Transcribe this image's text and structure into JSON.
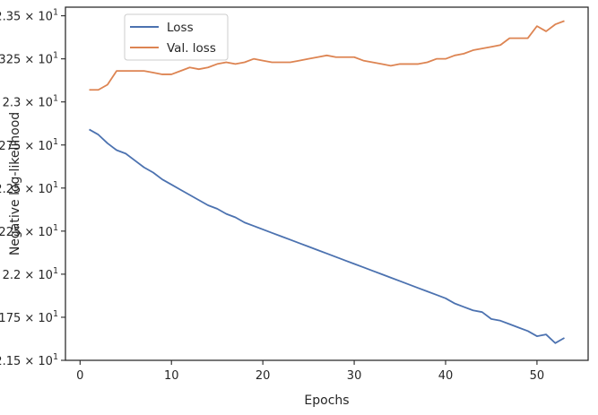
{
  "chart_data": {
    "type": "line",
    "title": "",
    "xlabel": "Epochs",
    "ylabel": "Negative log-likelihood",
    "xlim": [
      -1.6,
      55.6
    ],
    "ylim": [
      21.5,
      23.55
    ],
    "xticks": [
      0,
      10,
      20,
      30,
      40,
      50
    ],
    "xtick_labels": [
      "0",
      "10",
      "20",
      "30",
      "40",
      "50"
    ],
    "yticks": [
      21.5,
      21.75,
      22.0,
      22.25,
      22.5,
      22.75,
      23.0,
      23.25,
      23.5
    ],
    "ytick_mantissas": [
      "2.15",
      "2.175",
      "2.2",
      "2.225",
      "2.25",
      "2.275",
      "2.3",
      "2.325",
      "2.35"
    ],
    "ytick_times": "×",
    "ytick_base": "10",
    "ytick_exp": "1",
    "grid": false,
    "legend_position": "top-left",
    "series": [
      {
        "name": "Loss",
        "color": "#4c72b0",
        "x": [
          1,
          2,
          3,
          4,
          5,
          6,
          7,
          8,
          9,
          10,
          11,
          12,
          13,
          14,
          15,
          16,
          17,
          18,
          19,
          20,
          21,
          22,
          23,
          24,
          25,
          26,
          27,
          28,
          29,
          30,
          31,
          32,
          33,
          34,
          35,
          36,
          37,
          38,
          39,
          40,
          41,
          42,
          43,
          44,
          45,
          46,
          47,
          48,
          49,
          50,
          51,
          52,
          53
        ],
        "values": [
          22.84,
          22.81,
          22.76,
          22.72,
          22.7,
          22.66,
          22.62,
          22.59,
          22.55,
          22.52,
          22.49,
          22.46,
          22.43,
          22.4,
          22.38,
          22.35,
          22.33,
          22.3,
          22.28,
          22.26,
          22.24,
          22.22,
          22.2,
          22.18,
          22.16,
          22.14,
          22.12,
          22.1,
          22.08,
          22.06,
          22.04,
          22.02,
          22.0,
          21.98,
          21.96,
          21.94,
          21.92,
          21.9,
          21.88,
          21.86,
          21.83,
          21.81,
          21.79,
          21.78,
          21.74,
          21.73,
          21.71,
          21.69,
          21.67,
          21.64,
          21.65,
          21.6,
          21.63
        ]
      },
      {
        "name": "Val. loss",
        "color": "#dd8452",
        "x": [
          1,
          2,
          3,
          4,
          5,
          6,
          7,
          8,
          9,
          10,
          11,
          12,
          13,
          14,
          15,
          16,
          17,
          18,
          19,
          20,
          21,
          22,
          23,
          24,
          25,
          26,
          27,
          28,
          29,
          30,
          31,
          32,
          33,
          34,
          35,
          36,
          37,
          38,
          39,
          40,
          41,
          42,
          43,
          44,
          45,
          46,
          47,
          48,
          49,
          50,
          51,
          52,
          53
        ],
        "values": [
          23.07,
          23.07,
          23.1,
          23.18,
          23.18,
          23.18,
          23.18,
          23.17,
          23.16,
          23.16,
          23.18,
          23.2,
          23.19,
          23.2,
          23.22,
          23.23,
          23.22,
          23.23,
          23.25,
          23.24,
          23.23,
          23.23,
          23.23,
          23.24,
          23.25,
          23.26,
          23.27,
          23.26,
          23.26,
          23.26,
          23.24,
          23.23,
          23.22,
          23.21,
          23.22,
          23.22,
          23.22,
          23.23,
          23.25,
          23.25,
          23.27,
          23.28,
          23.3,
          23.31,
          23.32,
          23.33,
          23.37,
          23.37,
          23.37,
          23.44,
          23.41,
          23.45,
          23.47
        ]
      }
    ]
  }
}
